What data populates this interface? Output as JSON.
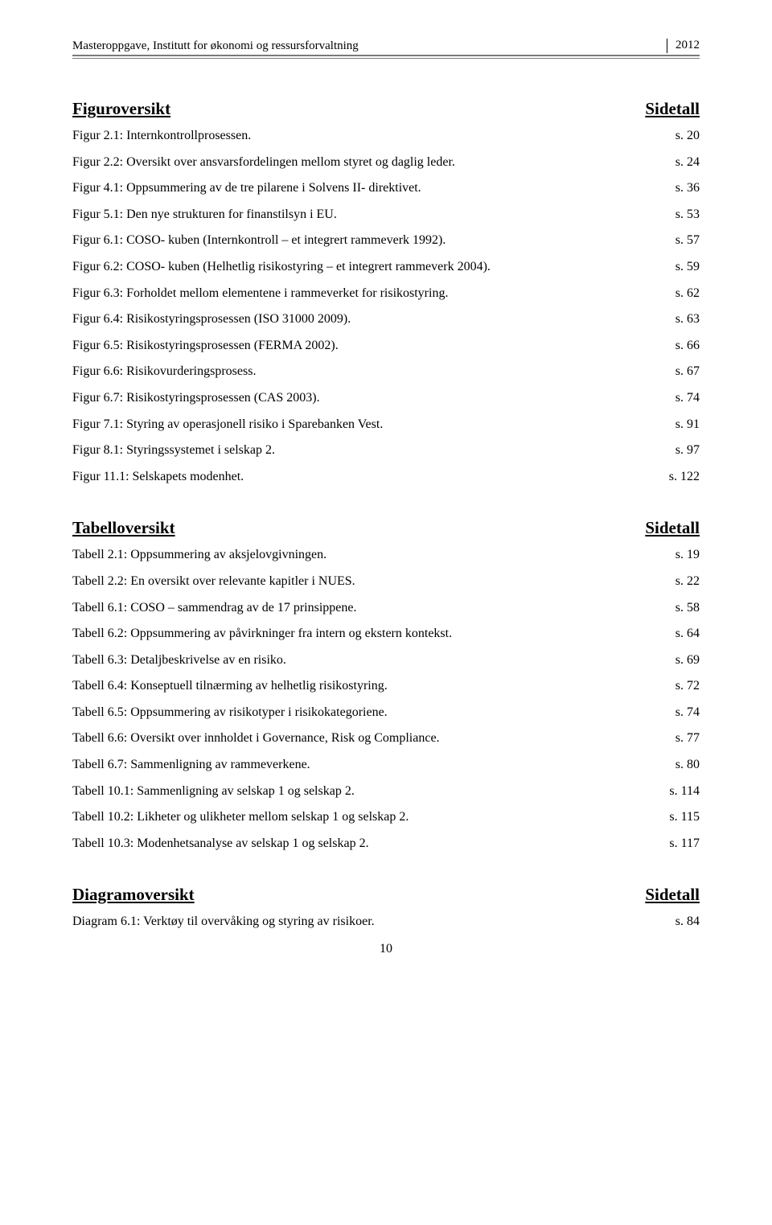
{
  "header": {
    "left": "Masteroppgave, Institutt for økonomi og ressursforvaltning",
    "year": "2012"
  },
  "sections": [
    {
      "title": "Figuroversikt",
      "right": "Sidetall",
      "items": [
        {
          "label": "Figur 2.1: Internkontrollprosessen.",
          "page": "s. 20"
        },
        {
          "label": "Figur 2.2: Oversikt over ansvarsfordelingen mellom styret og daglig leder.",
          "page": "s. 24"
        },
        {
          "label": "Figur 4.1: Oppsummering av de tre pilarene i Solvens II- direktivet.",
          "page": "s. 36"
        },
        {
          "label": "Figur 5.1: Den nye strukturen for finanstilsyn i EU.",
          "page": "s. 53"
        },
        {
          "label": "Figur 6.1: COSO- kuben (Internkontroll – et integrert rammeverk 1992).",
          "page": "s. 57"
        },
        {
          "label": "Figur 6.2: COSO- kuben (Helhetlig risikostyring – et integrert rammeverk 2004).",
          "page": "s. 59"
        },
        {
          "label": "Figur 6.3: Forholdet mellom elementene i rammeverket for risikostyring.",
          "page": "s. 62"
        },
        {
          "label": "Figur 6.4: Risikostyringsprosessen (ISO 31000 2009).",
          "page": "s. 63"
        },
        {
          "label": "Figur 6.5: Risikostyringsprosessen (FERMA 2002).",
          "page": "s. 66"
        },
        {
          "label": "Figur 6.6: Risikovurderingsprosess.",
          "page": "s. 67"
        },
        {
          "label": "Figur 6.7: Risikostyringsprosessen (CAS 2003).",
          "page": "s. 74"
        },
        {
          "label": "Figur 7.1: Styring av operasjonell risiko i Sparebanken Vest.",
          "page": "s. 91"
        },
        {
          "label": "Figur 8.1: Styringssystemet i selskap 2.",
          "page": "s. 97"
        },
        {
          "label": "Figur 11.1: Selskapets modenhet.",
          "page": "s. 122"
        }
      ]
    },
    {
      "title": "Tabelloversikt",
      "right": "Sidetall",
      "items": [
        {
          "label": "Tabell 2.1: Oppsummering av aksjelovgivningen.",
          "page": "s. 19"
        },
        {
          "label": "Tabell 2.2: En oversikt over relevante kapitler i NUES.",
          "page": "s. 22"
        },
        {
          "label": "Tabell 6.1: COSO – sammendrag av de 17 prinsippene.",
          "page": "s. 58"
        },
        {
          "label": "Tabell 6.2: Oppsummering av påvirkninger fra intern og ekstern kontekst.",
          "page": "s. 64"
        },
        {
          "label": "Tabell 6.3: Detaljbeskrivelse av en risiko.",
          "page": "s. 69"
        },
        {
          "label": "Tabell 6.4: Konseptuell tilnærming av helhetlig risikostyring.",
          "page": "s. 72"
        },
        {
          "label": "Tabell 6.5: Oppsummering av risikotyper i risikokategoriene.",
          "page": "s. 74"
        },
        {
          "label": "Tabell 6.6: Oversikt over innholdet i Governance, Risk og Compliance.",
          "page": "s. 77"
        },
        {
          "label": "Tabell 6.7: Sammenligning av rammeverkene.",
          "page": "s. 80"
        },
        {
          "label": "Tabell 10.1: Sammenligning av selskap 1 og selskap 2.",
          "page": "s. 114"
        },
        {
          "label": "Tabell 10.2: Likheter og ulikheter mellom selskap 1 og selskap 2.",
          "page": "s. 115"
        },
        {
          "label": "Tabell 10.3: Modenhetsanalyse av selskap 1 og selskap 2.",
          "page": "s. 117"
        }
      ]
    },
    {
      "title": "Diagramoversikt",
      "right": "Sidetall",
      "items": [
        {
          "label": "Diagram 6.1: Verktøy til overvåking og styring av risikoer.",
          "page": "s. 84"
        }
      ]
    }
  ],
  "pageNumber": "10"
}
